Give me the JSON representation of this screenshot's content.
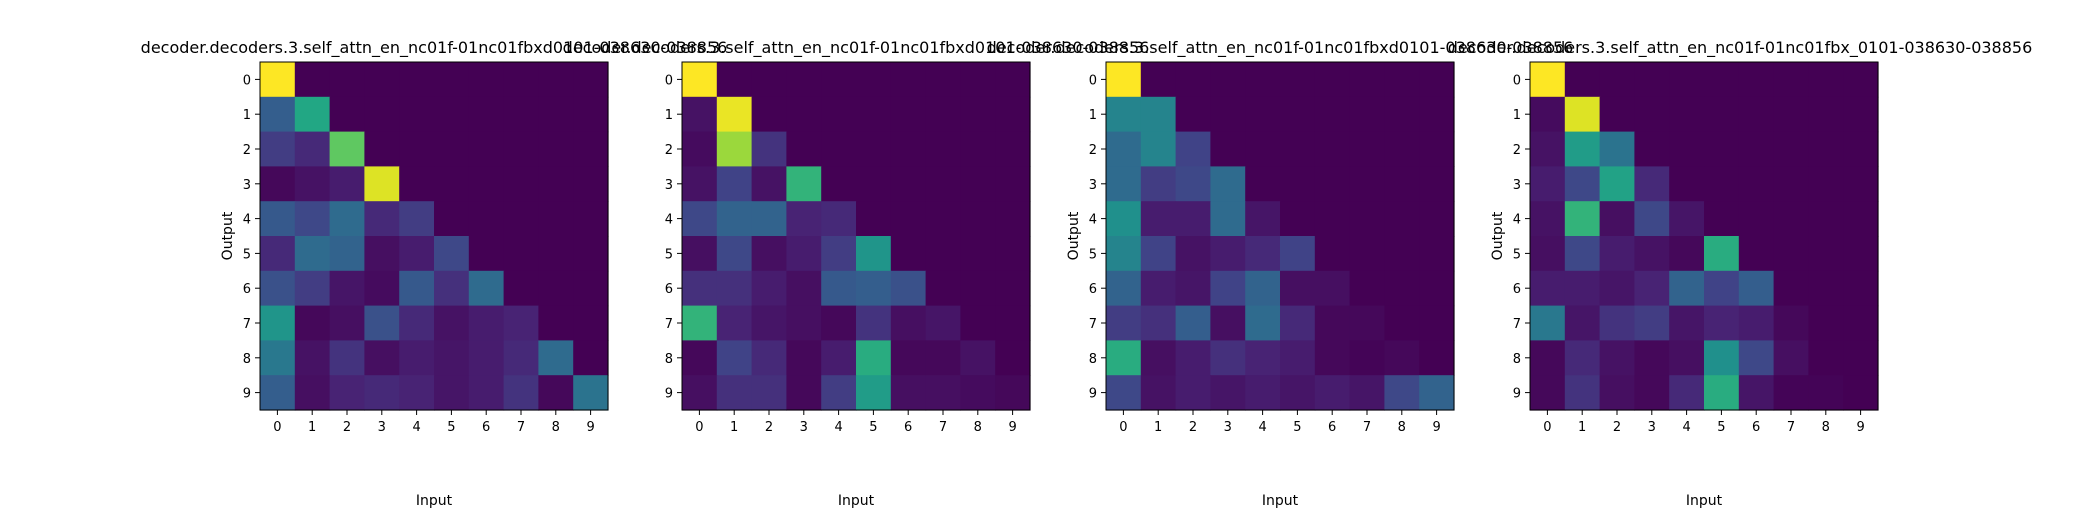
{
  "chart_data": [
    {
      "type": "heatmap",
      "title": "decoder.decoders.3.self_attn_en_nc01f-01nc01fbxd0101-038630-038856",
      "xlabel": "Input",
      "ylabel": "Output",
      "x_ticks": [
        "0",
        "1",
        "2",
        "3",
        "4",
        "5",
        "6",
        "7",
        "8",
        "9"
      ],
      "y_ticks": [
        "0",
        "1",
        "2",
        "3",
        "4",
        "5",
        "6",
        "7",
        "8",
        "9"
      ],
      "colormap": "viridis",
      "values": [
        [
          1.0,
          0,
          0,
          0,
          0,
          0,
          0,
          0,
          0,
          0
        ],
        [
          0.3,
          0.6,
          0,
          0,
          0,
          0,
          0,
          0,
          0,
          0
        ],
        [
          0.18,
          0.12,
          0.75,
          0,
          0,
          0,
          0,
          0,
          0,
          0
        ],
        [
          0.02,
          0.05,
          0.08,
          0.95,
          0,
          0,
          0,
          0,
          0,
          0
        ],
        [
          0.28,
          0.22,
          0.35,
          0.12,
          0.18,
          0,
          0,
          0,
          0,
          0
        ],
        [
          0.12,
          0.35,
          0.32,
          0.04,
          0.08,
          0.22,
          0,
          0,
          0,
          0
        ],
        [
          0.25,
          0.18,
          0.06,
          0.03,
          0.28,
          0.14,
          0.35,
          0,
          0,
          0
        ],
        [
          0.52,
          0.02,
          0.04,
          0.25,
          0.12,
          0.05,
          0.08,
          0.1,
          0,
          0
        ],
        [
          0.4,
          0.05,
          0.15,
          0.04,
          0.08,
          0.06,
          0.08,
          0.12,
          0.35,
          0
        ],
        [
          0.3,
          0.04,
          0.1,
          0.12,
          0.1,
          0.06,
          0.08,
          0.15,
          0.02,
          0.38
        ]
      ]
    },
    {
      "type": "heatmap",
      "title": "decoder.decoders.3.self_attn_en_nc01f-01nc01fbxd0101-038630-038856",
      "xlabel": "Input",
      "ylabel": "",
      "x_ticks": [
        "0",
        "1",
        "2",
        "3",
        "4",
        "5",
        "6",
        "7",
        "8",
        "9"
      ],
      "y_ticks": [
        "0",
        "1",
        "2",
        "3",
        "4",
        "5",
        "6",
        "7",
        "8",
        "9"
      ],
      "colormap": "viridis",
      "values": [
        [
          1.0,
          0,
          0,
          0,
          0,
          0,
          0,
          0,
          0,
          0
        ],
        [
          0.05,
          0.97,
          0,
          0,
          0,
          0,
          0,
          0,
          0,
          0
        ],
        [
          0.03,
          0.85,
          0.15,
          0,
          0,
          0,
          0,
          0,
          0,
          0
        ],
        [
          0.05,
          0.2,
          0.05,
          0.65,
          0,
          0,
          0,
          0,
          0,
          0
        ],
        [
          0.22,
          0.32,
          0.32,
          0.1,
          0.12,
          0,
          0,
          0,
          0,
          0
        ],
        [
          0.04,
          0.22,
          0.04,
          0.08,
          0.18,
          0.52,
          0,
          0,
          0,
          0
        ],
        [
          0.14,
          0.14,
          0.08,
          0.04,
          0.28,
          0.3,
          0.25,
          0,
          0,
          0
        ],
        [
          0.65,
          0.1,
          0.06,
          0.04,
          0.02,
          0.15,
          0.04,
          0.06,
          0,
          0
        ],
        [
          0.02,
          0.2,
          0.12,
          0.02,
          0.08,
          0.62,
          0.02,
          0.02,
          0.05,
          0
        ],
        [
          0.04,
          0.14,
          0.14,
          0.02,
          0.18,
          0.55,
          0.04,
          0.04,
          0.03,
          0.02
        ]
      ]
    },
    {
      "type": "heatmap",
      "title": "decoder.decoders.3.self_attn_en_nc01f-01nc01fbxd0101-038630-038856",
      "xlabel": "Input",
      "ylabel": "Output",
      "x_ticks": [
        "0",
        "1",
        "2",
        "3",
        "4",
        "5",
        "6",
        "7",
        "8",
        "9"
      ],
      "y_ticks": [
        "0",
        "1",
        "2",
        "3",
        "4",
        "5",
        "6",
        "7",
        "8",
        "9"
      ],
      "colormap": "viridis",
      "values": [
        [
          1.0,
          0,
          0,
          0,
          0,
          0,
          0,
          0,
          0,
          0
        ],
        [
          0.45,
          0.45,
          0,
          0,
          0,
          0,
          0,
          0,
          0,
          0
        ],
        [
          0.35,
          0.45,
          0.2,
          0,
          0,
          0,
          0,
          0,
          0,
          0
        ],
        [
          0.35,
          0.18,
          0.22,
          0.35,
          0,
          0,
          0,
          0,
          0,
          0
        ],
        [
          0.5,
          0.08,
          0.08,
          0.35,
          0.06,
          0,
          0,
          0,
          0,
          0
        ],
        [
          0.45,
          0.2,
          0.05,
          0.08,
          0.12,
          0.2,
          0,
          0,
          0,
          0
        ],
        [
          0.32,
          0.08,
          0.06,
          0.2,
          0.32,
          0.04,
          0.04,
          0,
          0,
          0
        ],
        [
          0.18,
          0.14,
          0.3,
          0.04,
          0.35,
          0.12,
          0.02,
          0.02,
          0,
          0
        ],
        [
          0.62,
          0.04,
          0.08,
          0.14,
          0.1,
          0.08,
          0.02,
          0.01,
          0.02,
          0
        ],
        [
          0.22,
          0.05,
          0.08,
          0.06,
          0.08,
          0.06,
          0.08,
          0.06,
          0.22,
          0.32
        ]
      ]
    },
    {
      "type": "heatmap",
      "title": "decoder.decoders.3.self_attn_en_nc01f-01nc01fbx_0101-038630-038856",
      "xlabel": "Input",
      "ylabel": "Output",
      "x_ticks": [
        "0",
        "1",
        "2",
        "3",
        "4",
        "5",
        "6",
        "7",
        "8",
        "9"
      ],
      "y_ticks": [
        "0",
        "1",
        "2",
        "3",
        "4",
        "5",
        "6",
        "7",
        "8",
        "9"
      ],
      "colormap": "viridis",
      "values": [
        [
          1.0,
          0,
          0,
          0,
          0,
          0,
          0,
          0,
          0,
          0
        ],
        [
          0.03,
          0.95,
          0,
          0,
          0,
          0,
          0,
          0,
          0,
          0
        ],
        [
          0.05,
          0.55,
          0.38,
          0,
          0,
          0,
          0,
          0,
          0,
          0
        ],
        [
          0.08,
          0.22,
          0.58,
          0.12,
          0,
          0,
          0,
          0,
          0,
          0
        ],
        [
          0.05,
          0.65,
          0.04,
          0.22,
          0.06,
          0,
          0,
          0,
          0,
          0
        ],
        [
          0.04,
          0.22,
          0.08,
          0.05,
          0.02,
          0.62,
          0,
          0,
          0,
          0
        ],
        [
          0.08,
          0.08,
          0.06,
          0.1,
          0.32,
          0.2,
          0.3,
          0,
          0,
          0
        ],
        [
          0.4,
          0.06,
          0.15,
          0.18,
          0.06,
          0.1,
          0.08,
          0.02,
          0,
          0
        ],
        [
          0.02,
          0.12,
          0.05,
          0.02,
          0.04,
          0.5,
          0.22,
          0.04,
          0,
          0
        ],
        [
          0.02,
          0.15,
          0.04,
          0.02,
          0.12,
          0.62,
          0.06,
          0.01,
          0.01,
          0
        ]
      ]
    }
  ]
}
